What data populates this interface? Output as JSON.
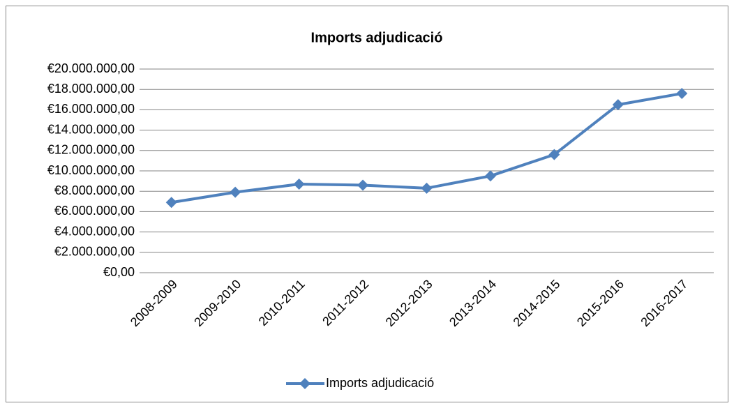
{
  "chart_data": {
    "type": "line",
    "title": "Imports adjudicació",
    "categories": [
      "2008-2009",
      "2009-2010",
      "2010-2011",
      "2011-2012",
      "2012-2013",
      "2013-2014",
      "2014-2015",
      "2015-2016",
      "2016-2017"
    ],
    "series": [
      {
        "name": "Imports adjudicació",
        "color": "#4f81bd",
        "values": [
          6900000,
          7900000,
          8700000,
          8600000,
          8300000,
          9500000,
          11600000,
          16500000,
          17600000
        ]
      }
    ],
    "ylim": [
      0,
      20000000
    ],
    "yticks": [
      {
        "value": 0,
        "label": "€0,00"
      },
      {
        "value": 2000000,
        "label": "€2.000.000,00"
      },
      {
        "value": 4000000,
        "label": "€4.000.000,00"
      },
      {
        "value": 6000000,
        "label": "€6.000.000,00"
      },
      {
        "value": 8000000,
        "label": "€8.000.000,00"
      },
      {
        "value": 10000000,
        "label": "€10.000.000,00"
      },
      {
        "value": 12000000,
        "label": "€12.000.000,00"
      },
      {
        "value": 14000000,
        "label": "€14.000.000,00"
      },
      {
        "value": 16000000,
        "label": "€16.000.000,00"
      },
      {
        "value": 18000000,
        "label": "€18.000.000,00"
      },
      {
        "value": 20000000,
        "label": "€20.000.000,00"
      }
    ],
    "grid": true,
    "legend": "bottom"
  }
}
